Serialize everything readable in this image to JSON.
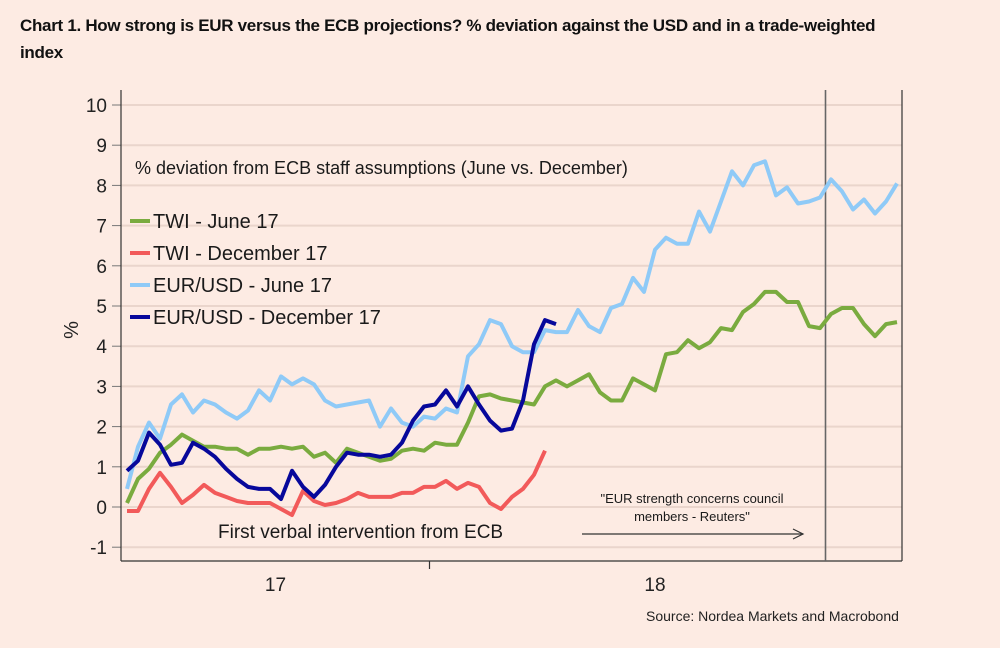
{
  "title": "Chart 1. How strong is EUR versus the ECB projections? % deviation against the USD and in a trade-weighted index",
  "source": "Source: Nordea Markets and Macrobond",
  "chart_data": {
    "type": "line",
    "title": "Chart 1. How strong is EUR versus the ECB projections? % deviation against the USD and in a trade-weighted index",
    "subtitle": "% deviation from ECB staff assumptions (June vs. December)",
    "xlabel": "",
    "ylabel": "%",
    "ylim": [
      -1.5,
      10.3
    ],
    "yticks": [
      10,
      9,
      8,
      7,
      6,
      5,
      4,
      3,
      2,
      1,
      0,
      -1
    ],
    "xlim": [
      -0.5,
      70.5
    ],
    "x_unit": "weeks",
    "xticks": [
      {
        "label": "17",
        "x": 13.5
      },
      {
        "label": "18",
        "x": 48
      }
    ],
    "x_divider": 27.5,
    "grid": true,
    "legend": "top-left",
    "vline_x": 63.5,
    "annotations": [
      {
        "text": "First verbal intervention from ECB"
      },
      {
        "text": "\"EUR strength concerns council members - Reuters\""
      }
    ],
    "series": [
      {
        "name": "TWI - June 17",
        "color": "#7aab3f",
        "values": [
          0.1,
          0.7,
          0.95,
          1.35,
          1.55,
          1.8,
          1.65,
          1.5,
          1.5,
          1.45,
          1.45,
          1.3,
          1.45,
          1.45,
          1.5,
          1.45,
          1.5,
          1.25,
          1.35,
          1.1,
          1.45,
          1.35,
          1.25,
          1.15,
          1.2,
          1.4,
          1.45,
          1.4,
          1.6,
          1.55,
          1.55,
          2.1,
          2.75,
          2.8,
          2.7,
          2.65,
          2.6,
          2.55,
          3.0,
          3.15,
          3.0,
          3.15,
          3.3,
          2.85,
          2.65,
          2.65,
          3.2,
          3.05,
          2.9,
          3.8,
          3.85,
          4.15,
          3.95,
          4.1,
          4.45,
          4.4,
          4.85,
          5.05,
          5.35,
          5.35,
          5.1,
          5.1,
          4.5,
          4.45,
          4.8,
          4.95,
          4.95,
          4.55,
          4.25,
          4.55,
          4.6
        ]
      },
      {
        "name": "TWI - December 17",
        "color": "#f25a5a",
        "values": [
          -0.1,
          -0.1,
          0.45,
          0.85,
          0.5,
          0.1,
          0.3,
          0.55,
          0.35,
          0.25,
          0.15,
          0.1,
          0.1,
          0.1,
          -0.05,
          -0.2,
          0.4,
          0.15,
          0.05,
          0.1,
          0.2,
          0.35,
          0.25,
          0.25,
          0.25,
          0.35,
          0.35,
          0.5,
          0.5,
          0.65,
          0.45,
          0.6,
          0.5,
          0.1,
          -0.05,
          0.25,
          0.45,
          0.8,
          1.4
        ]
      },
      {
        "name": "EUR/USD - June 17",
        "color": "#8fcaf7",
        "values": [
          0.45,
          1.5,
          2.1,
          1.7,
          2.55,
          2.8,
          2.35,
          2.65,
          2.55,
          2.35,
          2.2,
          2.4,
          2.9,
          2.65,
          3.25,
          3.05,
          3.2,
          3.05,
          2.65,
          2.5,
          2.55,
          2.6,
          2.65,
          2.0,
          2.45,
          2.1,
          2.0,
          2.25,
          2.2,
          2.45,
          2.35,
          3.75,
          4.05,
          4.65,
          4.55,
          4.0,
          3.85,
          3.85,
          4.4,
          4.35,
          4.35,
          4.9,
          4.5,
          4.35,
          4.95,
          5.05,
          5.7,
          5.35,
          6.4,
          6.7,
          6.55,
          6.55,
          7.35,
          6.85,
          7.6,
          8.35,
          8.0,
          8.5,
          8.6,
          7.75,
          7.95,
          7.55,
          7.6,
          7.7,
          8.15,
          7.85,
          7.4,
          7.65,
          7.3,
          7.6,
          8.05
        ]
      },
      {
        "name": "EUR/USD - December 17",
        "color": "#07089b",
        "values": [
          0.9,
          1.15,
          1.85,
          1.55,
          1.05,
          1.1,
          1.6,
          1.45,
          1.25,
          0.95,
          0.7,
          0.5,
          0.45,
          0.45,
          0.2,
          0.9,
          0.5,
          0.25,
          0.55,
          1.0,
          1.35,
          1.3,
          1.3,
          1.25,
          1.3,
          1.6,
          2.15,
          2.5,
          2.55,
          2.9,
          2.5,
          3.0,
          2.55,
          2.15,
          1.9,
          1.95,
          2.65,
          4.05,
          4.65,
          4.55
        ]
      }
    ]
  }
}
